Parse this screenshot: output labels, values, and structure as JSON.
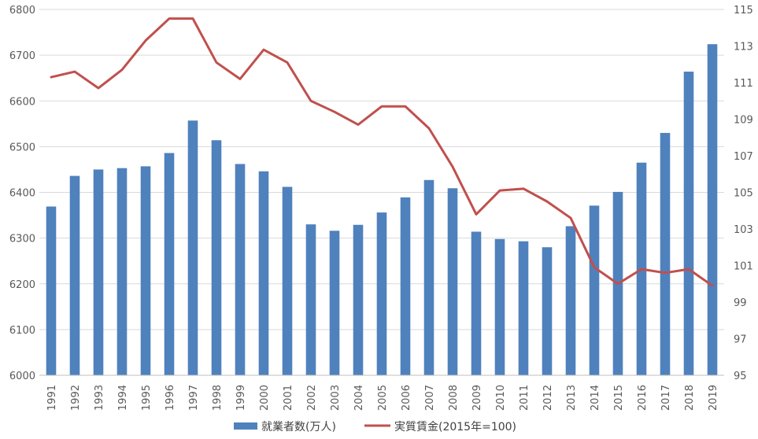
{
  "chart_data": {
    "type": "bar",
    "title": "",
    "xlabel": "",
    "ylabel": "",
    "y2label": "",
    "ylim": [
      6000,
      6800
    ],
    "y2lim": [
      95,
      115
    ],
    "yticks": [
      6000,
      6100,
      6200,
      6300,
      6400,
      6500,
      6600,
      6700,
      6800
    ],
    "y2ticks": [
      95,
      97,
      99,
      101,
      103,
      105,
      107,
      109,
      111,
      113,
      115
    ],
    "grid": true,
    "legend": "bottom",
    "categories": [
      "1991",
      "1992",
      "1993",
      "1994",
      "1995",
      "1996",
      "1997",
      "1998",
      "1999",
      "2000",
      "2001",
      "2002",
      "2003",
      "2004",
      "2005",
      "2006",
      "2007",
      "2008",
      "2009",
      "2010",
      "2011",
      "2012",
      "2013",
      "2014",
      "2015",
      "2016",
      "2017",
      "2018",
      "2019"
    ],
    "series": [
      {
        "name": "就業者数(万人)",
        "type": "bar",
        "axis": "left",
        "color": "#4f81bd",
        "values": [
          6369,
          6436,
          6450,
          6453,
          6457,
          6486,
          6557,
          6514,
          6462,
          6446,
          6412,
          6330,
          6316,
          6329,
          6356,
          6389,
          6427,
          6409,
          6314,
          6298,
          6293,
          6280,
          6326,
          6371,
          6401,
          6465,
          6530,
          6664,
          6724
        ]
      },
      {
        "name": "実質賃金(2015年=100)",
        "type": "line",
        "axis": "right",
        "color": "#c0504d",
        "values": [
          111.3,
          111.6,
          110.7,
          111.7,
          113.3,
          114.5,
          114.5,
          112.1,
          111.2,
          112.8,
          112.1,
          110.0,
          109.4,
          108.7,
          109.7,
          109.7,
          108.5,
          106.4,
          103.8,
          105.1,
          105.2,
          104.5,
          103.6,
          100.9,
          100.0,
          100.8,
          100.6,
          100.8,
          99.9
        ]
      }
    ]
  }
}
